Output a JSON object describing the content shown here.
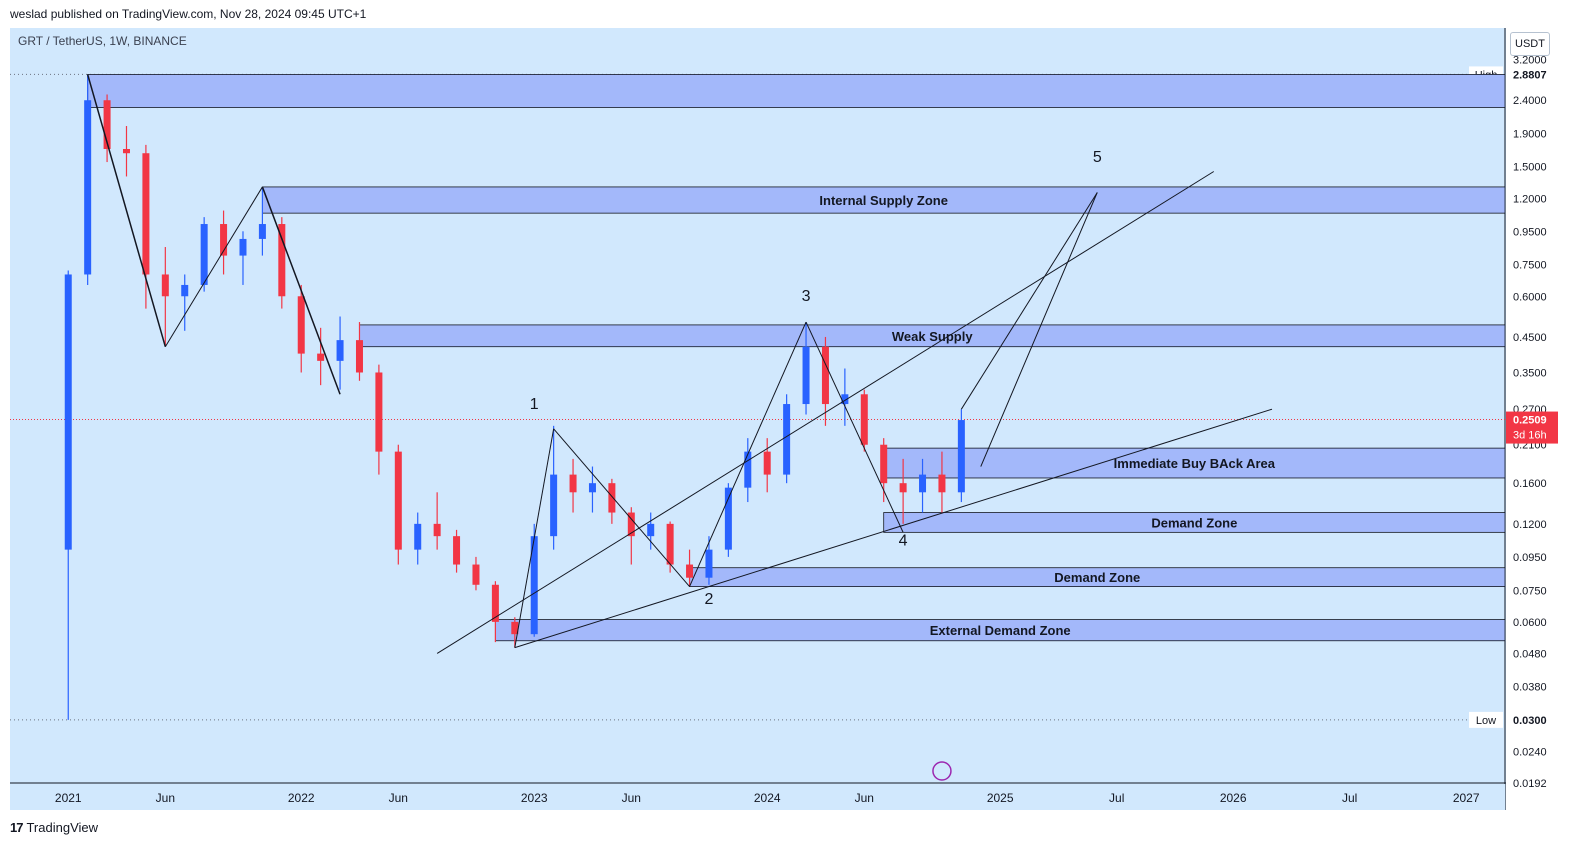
{
  "header": {
    "caption": "weslad published on TradingView.com, Nov 28, 2024 09:45 UTC+1",
    "symbol": "GRT / TetherUS, 1W, BINANCE",
    "currency": "USDT"
  },
  "footer": {
    "brand_mark": "17",
    "brand": "TradingView"
  },
  "chart_data": {
    "type": "candlestick",
    "scale": "log",
    "ylim": [
      0.0192,
      4.0
    ],
    "xlim": [
      "2020-10",
      "2027-03"
    ],
    "x_ticks": [
      "2021",
      "Jun",
      "2022",
      "Jun",
      "2023",
      "Jun",
      "2024",
      "Jun",
      "2025",
      "Jul",
      "2026",
      "Jul",
      "2027"
    ],
    "y_ticks": [
      "3.2000",
      "2.4000",
      "1.9000",
      "1.5000",
      "1.2000",
      "0.9500",
      "0.7500",
      "0.6000",
      "0.4500",
      "0.3500",
      "0.2700",
      "0.2100",
      "0.1600",
      "0.1200",
      "0.0950",
      "0.0750",
      "0.0600",
      "0.0480",
      "0.0380",
      "0.0240",
      "0.0192"
    ],
    "y_tick_values": [
      3.2,
      2.4,
      1.9,
      1.5,
      1.2,
      0.95,
      0.75,
      0.6,
      0.45,
      0.35,
      0.27,
      0.21,
      0.16,
      0.12,
      0.095,
      0.075,
      0.06,
      0.048,
      0.038,
      0.024,
      0.0192
    ],
    "high": {
      "label": "High",
      "value": "2.8807"
    },
    "low": {
      "label": "Low",
      "value": "0.0300"
    },
    "last_price": {
      "value": "0.2509",
      "countdown": "3d 16h"
    },
    "zones": [
      {
        "label": "",
        "from": "2021-02",
        "top": 2.88,
        "bottom": 2.28
      },
      {
        "label": "Internal Supply Zone",
        "from": "2021-11",
        "top": 1.3,
        "bottom": 1.08
      },
      {
        "label": "Weak Supply",
        "from": "2022-04",
        "top": 0.49,
        "bottom": 0.42
      },
      {
        "label": "Immediate Buy BAck Area",
        "from": "2024-07",
        "top": 0.205,
        "bottom": 0.166
      },
      {
        "label": "Demand Zone",
        "from": "2024-07",
        "top": 0.13,
        "bottom": 0.113
      },
      {
        "label": "Demand Zone",
        "from": "2023-09",
        "top": 0.088,
        "bottom": 0.077
      },
      {
        "label": "External Demand Zone",
        "from": "2022-11",
        "top": 0.061,
        "bottom": 0.0525
      }
    ],
    "wave_labels": [
      {
        "label": "1",
        "date": "2023-01",
        "value": 0.27
      },
      {
        "label": "2",
        "date": "2023-10",
        "value": 0.068
      },
      {
        "label": "3",
        "date": "2024-03",
        "value": 0.58
      },
      {
        "label": "4",
        "date": "2024-08",
        "value": 0.103
      },
      {
        "label": "5",
        "date": "2025-06",
        "value": 1.55
      }
    ],
    "series": [
      {
        "values": [
          [
            "2021-01",
            0.1,
            0.72,
            0.03,
            0.7
          ],
          [
            "2021-02",
            0.7,
            2.88,
            0.65,
            2.4
          ],
          [
            "2021-03",
            2.4,
            2.5,
            1.55,
            1.7
          ],
          [
            "2021-04",
            1.7,
            2.0,
            1.4,
            1.65
          ],
          [
            "2021-05",
            1.65,
            1.75,
            0.55,
            0.7
          ],
          [
            "2021-06",
            0.7,
            0.85,
            0.42,
            0.6
          ],
          [
            "2021-07",
            0.6,
            0.7,
            0.47,
            0.65
          ],
          [
            "2021-08",
            0.65,
            1.05,
            0.62,
            1.0
          ],
          [
            "2021-09",
            1.0,
            1.1,
            0.7,
            0.8
          ],
          [
            "2021-10",
            0.8,
            0.95,
            0.65,
            0.9
          ],
          [
            "2021-11",
            0.9,
            1.3,
            0.8,
            1.0
          ],
          [
            "2021-12",
            1.0,
            1.05,
            0.55,
            0.6
          ],
          [
            "2022-01",
            0.6,
            0.65,
            0.35,
            0.4
          ],
          [
            "2022-02",
            0.4,
            0.48,
            0.32,
            0.38
          ],
          [
            "2022-03",
            0.38,
            0.52,
            0.31,
            0.44
          ],
          [
            "2022-04",
            0.44,
            0.5,
            0.33,
            0.35
          ],
          [
            "2022-05",
            0.35,
            0.37,
            0.17,
            0.2
          ],
          [
            "2022-06",
            0.2,
            0.21,
            0.09,
            0.1
          ],
          [
            "2022-07",
            0.1,
            0.13,
            0.09,
            0.12
          ],
          [
            "2022-08",
            0.12,
            0.15,
            0.1,
            0.11
          ],
          [
            "2022-09",
            0.11,
            0.115,
            0.085,
            0.09
          ],
          [
            "2022-10",
            0.09,
            0.095,
            0.075,
            0.078
          ],
          [
            "2022-11",
            0.078,
            0.08,
            0.052,
            0.06
          ],
          [
            "2022-12",
            0.06,
            0.062,
            0.05,
            0.055
          ],
          [
            "2023-01",
            0.055,
            0.12,
            0.054,
            0.11
          ],
          [
            "2023-02",
            0.11,
            0.24,
            0.1,
            0.17
          ],
          [
            "2023-03",
            0.17,
            0.19,
            0.13,
            0.15
          ],
          [
            "2023-04",
            0.15,
            0.18,
            0.13,
            0.16
          ],
          [
            "2023-05",
            0.16,
            0.165,
            0.12,
            0.13
          ],
          [
            "2023-06",
            0.13,
            0.135,
            0.09,
            0.11
          ],
          [
            "2023-07",
            0.11,
            0.13,
            0.1,
            0.12
          ],
          [
            "2023-08",
            0.12,
            0.122,
            0.085,
            0.09
          ],
          [
            "2023-09",
            0.09,
            0.1,
            0.077,
            0.082
          ],
          [
            "2023-10",
            0.082,
            0.11,
            0.078,
            0.1
          ],
          [
            "2023-11",
            0.1,
            0.16,
            0.095,
            0.155
          ],
          [
            "2023-12",
            0.155,
            0.22,
            0.14,
            0.2
          ],
          [
            "2024-01",
            0.2,
            0.22,
            0.15,
            0.17
          ],
          [
            "2024-02",
            0.17,
            0.3,
            0.16,
            0.28
          ],
          [
            "2024-03",
            0.28,
            0.5,
            0.26,
            0.42
          ],
          [
            "2024-04",
            0.42,
            0.45,
            0.24,
            0.28
          ],
          [
            "2024-05",
            0.28,
            0.36,
            0.24,
            0.3
          ],
          [
            "2024-06",
            0.3,
            0.31,
            0.2,
            0.21
          ],
          [
            "2024-07",
            0.21,
            0.22,
            0.14,
            0.16
          ],
          [
            "2024-08",
            0.16,
            0.19,
            0.12,
            0.15
          ],
          [
            "2024-09",
            0.15,
            0.19,
            0.13,
            0.17
          ],
          [
            "2024-10",
            0.17,
            0.2,
            0.13,
            0.15
          ],
          [
            "2024-11",
            0.15,
            0.27,
            0.14,
            0.25
          ]
        ]
      }
    ]
  }
}
